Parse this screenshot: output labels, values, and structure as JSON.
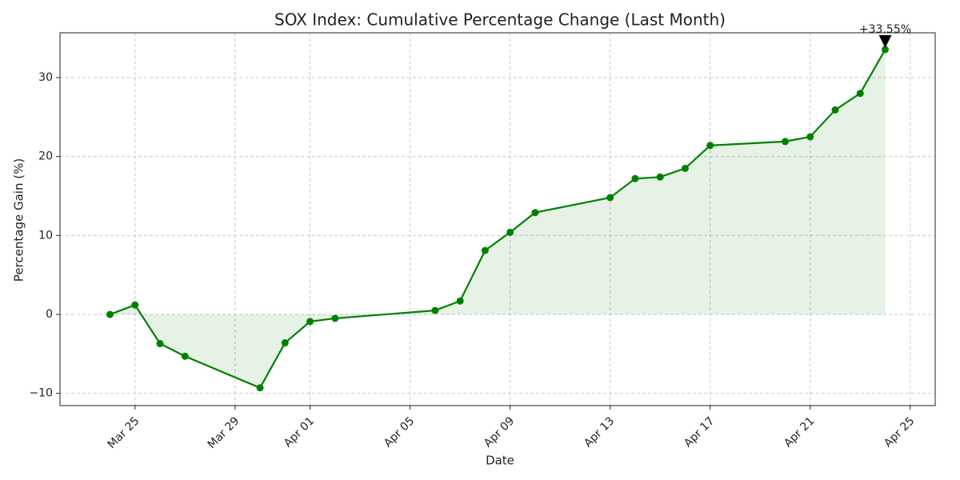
{
  "chart_data": {
    "type": "line",
    "title": "SOX Index: Cumulative Percentage Change (Last Month)",
    "xlabel": "Date",
    "ylabel": "Percentage Gain (%)",
    "x": [
      "Mar 24",
      "Mar 25",
      "Mar 26",
      "Mar 27",
      "Mar 30",
      "Mar 31",
      "Apr 01",
      "Apr 02",
      "Apr 06",
      "Apr 07",
      "Apr 08",
      "Apr 09",
      "Apr 10",
      "Apr 13",
      "Apr 14",
      "Apr 15",
      "Apr 16",
      "Apr 17",
      "Apr 20",
      "Apr 21",
      "Apr 22",
      "Apr 23",
      "Apr 24"
    ],
    "values": [
      0,
      1.2,
      -3.7,
      -5.3,
      -9.3,
      -3.6,
      -0.9,
      -0.5,
      0.5,
      1.7,
      8.1,
      10.4,
      12.9,
      14.8,
      17.2,
      17.4,
      18.5,
      21.4,
      21.9,
      22.5,
      25.9,
      28.0,
      33.55
    ],
    "color": "#008000",
    "xlim": [
      "Mar 22",
      "Apr 26"
    ],
    "xticks": [
      "Mar 25",
      "Mar 29",
      "Apr 01",
      "Apr 05",
      "Apr 09",
      "Apr 13",
      "Apr 17",
      "Apr 21",
      "Apr 25"
    ],
    "ylim": [
      -11.55,
      35.67
    ],
    "yticks": [
      {
        "value": -10,
        "label": "−10"
      },
      0,
      10,
      20,
      30
    ],
    "grid": true,
    "annotation": {
      "text": "+33.55%",
      "x": "Apr 24",
      "y": 33.55
    }
  }
}
